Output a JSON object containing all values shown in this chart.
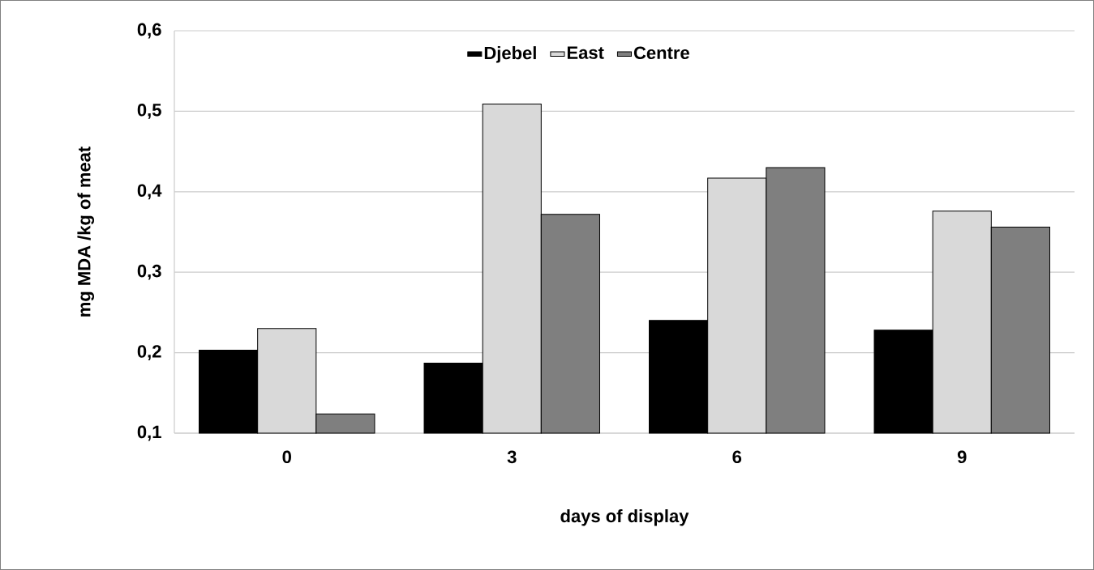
{
  "chart_data": {
    "type": "bar",
    "xlabel": "days of display",
    "ylabel": "mg MDA /kg of meat",
    "categories": [
      "0",
      "3",
      "6",
      "9"
    ],
    "series": [
      {
        "name": "Djebel",
        "color": "#000000",
        "values": [
          0.203,
          0.187,
          0.24,
          0.228
        ]
      },
      {
        "name": "East",
        "color": "#d9d9d9",
        "values": [
          0.23,
          0.509,
          0.417,
          0.376
        ]
      },
      {
        "name": "Centre",
        "color": "#7f7f7f",
        "values": [
          0.124,
          0.372,
          0.43,
          0.356
        ]
      }
    ],
    "ylim": [
      0.1,
      0.6
    ],
    "yticks": [
      {
        "value": 0.1,
        "label": "0,1"
      },
      {
        "value": 0.2,
        "label": "0,2"
      },
      {
        "value": 0.3,
        "label": "0,3"
      },
      {
        "value": 0.4,
        "label": "0,4"
      },
      {
        "value": 0.5,
        "label": "0,5"
      },
      {
        "value": 0.6,
        "label": "0,6"
      }
    ],
    "grid": "y",
    "legend": "top"
  }
}
